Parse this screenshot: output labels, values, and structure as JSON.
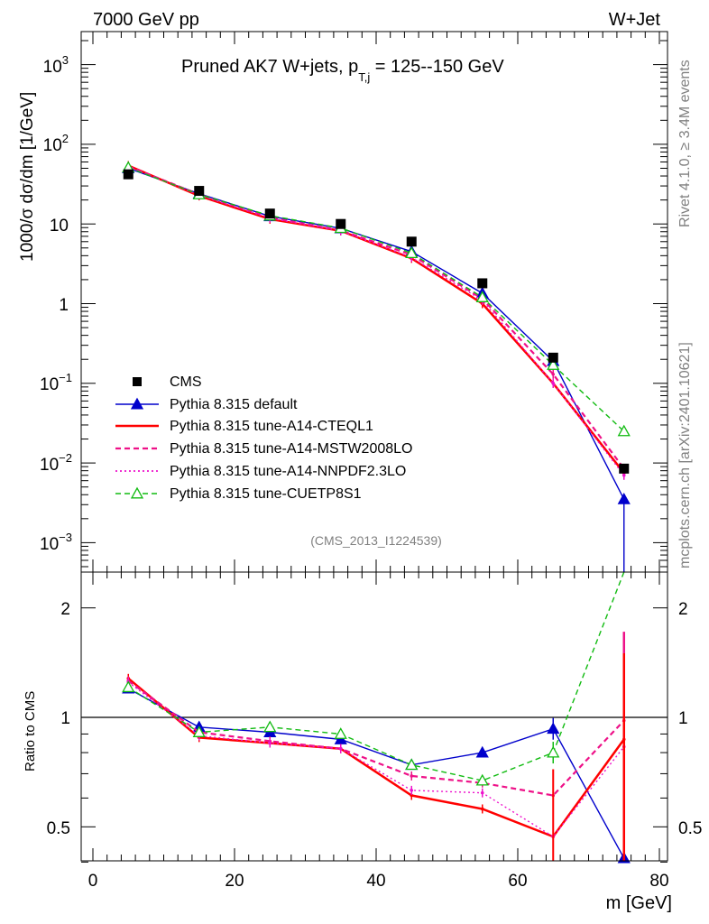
{
  "header": {
    "energy_label": "7000 GeV pp",
    "process_label": "W+Jet",
    "title_main": "Pruned AK7 W+jets, p",
    "title_sub": "T,j",
    "title_tail": " = 125--150 GeV",
    "rivet_label": "Rivet 4.1.0, ≥ 3.4M events",
    "site_label": "mcplots.cern.ch [arXiv:2401.10621]",
    "analysis_label": "(CMS_2013_I1224539)"
  },
  "axes": {
    "ylabel_main": "1000/σ  dσ/dm [1/GeV]",
    "ylabel_ratio": "Ratio to CMS",
    "xlabel": "m [GeV]",
    "x_ticks": [
      "0",
      "20",
      "40",
      "60",
      "80"
    ],
    "y_ticks_main": [
      {
        "base": "10",
        "exp": "3"
      },
      {
        "base": "10",
        "exp": "2"
      },
      {
        "base": "10",
        "exp": ""
      },
      {
        "base": "1",
        "exp": ""
      },
      {
        "base": "10",
        "exp": "−1"
      },
      {
        "base": "10",
        "exp": "−2"
      },
      {
        "base": "10",
        "exp": "−3"
      }
    ],
    "y_ticks_ratio": [
      "2",
      "1",
      "0.5"
    ]
  },
  "legend": [
    {
      "label": "CMS",
      "color": "#000000"
    },
    {
      "label": "Pythia 8.315 default",
      "color": "#0000cc"
    },
    {
      "label": "Pythia 8.315 tune-A14-CTEQL1",
      "color": "#ff0000"
    },
    {
      "label": "Pythia 8.315 tune-A14-MSTW2008LO",
      "color": "#ee1188"
    },
    {
      "label": "Pythia 8.315 tune-A14-NNPDF2.3LO",
      "color": "#ee11cc"
    },
    {
      "label": "Pythia 8.315 tune-CUETP8S1",
      "color": "#11bb11"
    }
  ],
  "chart_data": {
    "type": "line",
    "title": "Pruned AK7 W+jets, p_T,j = 125--150 GeV",
    "xlabel": "m [GeV]",
    "ylabel": "1000/σ dσ/dm [1/GeV]",
    "xlim": [
      -1,
      81
    ],
    "ylim": [
      0.0004,
      2500
    ],
    "yscale": "log",
    "ratio_ylim": [
      0.4,
      2.4
    ],
    "ratio_yscale": "log",
    "x": [
      5,
      15,
      25,
      35,
      45,
      55,
      65,
      75
    ],
    "data": {
      "name": "CMS",
      "values": [
        42,
        26,
        13.5,
        10,
        6,
        1.8,
        0.21,
        0.0085
      ]
    },
    "series": [
      {
        "name": "Pythia 8.315 default",
        "color": "#0000cc",
        "dash": "",
        "marker": "tri",
        "values": [
          50,
          24,
          12.5,
          8.8,
          4.5,
          1.35,
          0.19,
          0.0035
        ],
        "ratio": [
          1.2,
          0.94,
          0.91,
          0.87,
          0.74,
          0.8,
          0.93,
          0.41
        ]
      },
      {
        "name": "Pythia 8.315 tune-A14-CTEQL1",
        "color": "#ff0000",
        "dash": "",
        "marker": "none",
        "values": [
          54,
          22.5,
          11.5,
          8.2,
          3.7,
          1.0,
          0.1,
          0.0075
        ],
        "ratio": [
          1.28,
          0.88,
          0.85,
          0.82,
          0.61,
          0.56,
          0.47,
          0.87
        ]
      },
      {
        "name": "Pythia 8.315 tune-A14-MSTW2008LO",
        "color": "#ee1188",
        "dash": "6,4",
        "marker": "none",
        "values": [
          53,
          23.5,
          12,
          8.3,
          4.1,
          1.15,
          0.13,
          0.0085
        ],
        "ratio": [
          1.26,
          0.91,
          0.86,
          0.82,
          0.69,
          0.66,
          0.61,
          0.98
        ]
      },
      {
        "name": "Pythia 8.315 tune-A14-NNPDF2.3LO",
        "color": "#ee11cc",
        "dash": "2,3",
        "marker": "none",
        "values": [
          52,
          23,
          11.8,
          8.2,
          3.8,
          1.1,
          0.1,
          0.007
        ],
        "ratio": [
          1.25,
          0.89,
          0.85,
          0.82,
          0.63,
          0.62,
          0.47,
          0.83
        ]
      },
      {
        "name": "Pythia 8.315 tune-CUETP8S1",
        "color": "#11bb11",
        "dash": "6,4",
        "marker": "otri",
        "values": [
          51,
          23.5,
          12.7,
          8.9,
          4.3,
          1.2,
          0.17,
          0.025
        ],
        "ratio": [
          1.21,
          0.91,
          0.94,
          0.9,
          0.74,
          0.67,
          0.8,
          2.9
        ]
      }
    ]
  }
}
